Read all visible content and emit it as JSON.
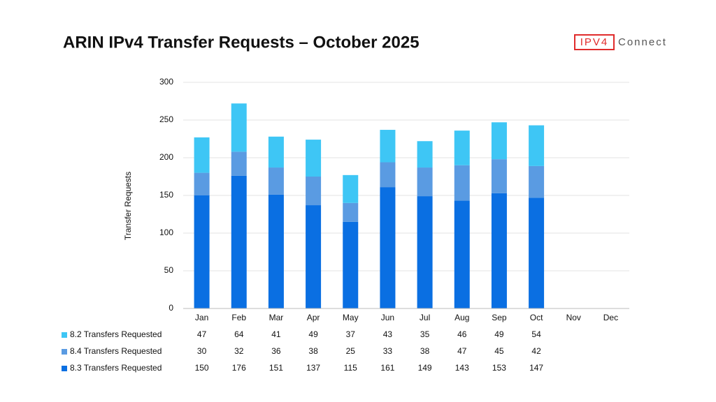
{
  "chart_data": {
    "type": "stacked_bar",
    "title": "ARIN IPv4 Transfer Requests – October 2025",
    "logo": {
      "box": "IPV4",
      "text": "Connect"
    },
    "y_label": "Transfer Requests",
    "categories": [
      "Jan",
      "Feb",
      "Mar",
      "Apr",
      "May",
      "Jun",
      "Jul",
      "Aug",
      "Sep",
      "Oct",
      "Nov",
      "Dec"
    ],
    "series": [
      {
        "name": "8.2 Transfers Requested",
        "color": "#3ec6f5",
        "values": [
          47,
          64,
          41,
          49,
          37,
          43,
          35,
          46,
          49,
          54,
          null,
          null
        ]
      },
      {
        "name": "8.4 Transfers Requested",
        "color": "#5a9be2",
        "values": [
          30,
          32,
          36,
          38,
          25,
          33,
          38,
          47,
          45,
          42,
          null,
          null
        ]
      },
      {
        "name": "8.3 Transfers Requested",
        "color": "#0a6fe2",
        "values": [
          150,
          176,
          151,
          137,
          115,
          161,
          149,
          143,
          153,
          147,
          null,
          null
        ]
      }
    ],
    "ylim": [
      0,
      300
    ],
    "yticks": [
      0,
      50,
      100,
      150,
      200,
      250,
      300
    ],
    "grid": true
  }
}
